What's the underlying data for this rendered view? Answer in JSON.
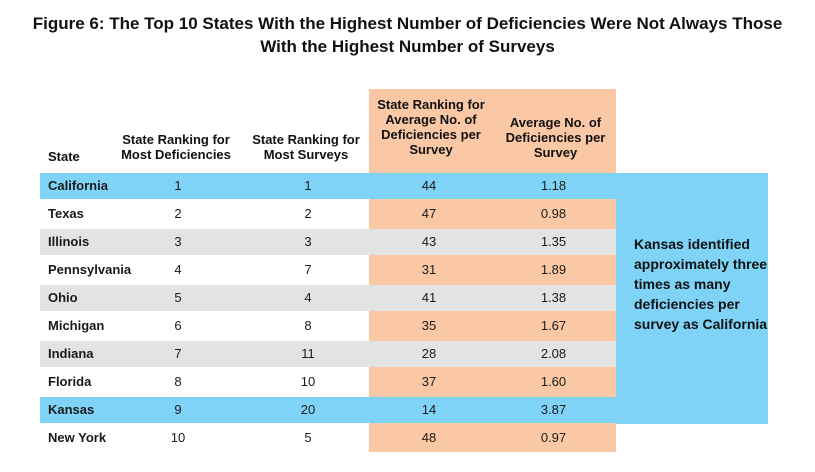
{
  "title_line1": "Figure 6: The Top 10 States With the Highest Number of Deficiencies Were Not Always Those",
  "title_line2": "With the Highest Number of Surveys",
  "headers": {
    "state": "State",
    "most_def_line1": "State Ranking for",
    "most_def_line2": "Most Deficiencies",
    "most_surv_line1": "State Ranking for",
    "most_surv_line2": "Most Surveys",
    "avg_rank_line1": "State Ranking for",
    "avg_rank_line2": "Average No. of",
    "avg_rank_line3": "Deficiencies per",
    "avg_rank_line4": "Survey",
    "avg_no_line1": "Average No. of",
    "avg_no_line2": "Deficiencies per",
    "avg_no_line3": "Survey"
  },
  "callout_text": "Kansas identified approximately three times as many deficiencies per survey as California",
  "colors": {
    "highlight_blue": "#7ed3f7",
    "stripe_gray": "#e3e3e3",
    "orange_column": "#fbc8a6"
  },
  "chart_data": {
    "type": "table",
    "columns": [
      "State",
      "State Ranking for Most Deficiencies",
      "State Ranking for Most Surveys",
      "State Ranking for Average No. of Deficiencies per Survey",
      "Average No. of Deficiencies per Survey"
    ],
    "rows": [
      {
        "state": "California",
        "most_def": "1",
        "most_surv": "1",
        "avg_rank": "44",
        "avg_no": "1.18",
        "highlight": "blue"
      },
      {
        "state": "Texas",
        "most_def": "2",
        "most_surv": "2",
        "avg_rank": "47",
        "avg_no": "0.98",
        "highlight": "none"
      },
      {
        "state": "Illinois",
        "most_def": "3",
        "most_surv": "3",
        "avg_rank": "43",
        "avg_no": "1.35",
        "highlight": "gray"
      },
      {
        "state": "Pennsylvania",
        "most_def": "4",
        "most_surv": "7",
        "avg_rank": "31",
        "avg_no": "1.89",
        "highlight": "none"
      },
      {
        "state": "Ohio",
        "most_def": "5",
        "most_surv": "4",
        "avg_rank": "41",
        "avg_no": "1.38",
        "highlight": "gray"
      },
      {
        "state": "Michigan",
        "most_def": "6",
        "most_surv": "8",
        "avg_rank": "35",
        "avg_no": "1.67",
        "highlight": "none"
      },
      {
        "state": "Indiana",
        "most_def": "7",
        "most_surv": "11",
        "avg_rank": "28",
        "avg_no": "2.08",
        "highlight": "gray"
      },
      {
        "state": "Florida",
        "most_def": "8",
        "most_surv": "10",
        "avg_rank": "37",
        "avg_no": "1.60",
        "highlight": "none"
      },
      {
        "state": "Kansas",
        "most_def": "9",
        "most_surv": "20",
        "avg_rank": "14",
        "avg_no": "3.87",
        "highlight": "blue"
      },
      {
        "state": "New York",
        "most_def": "10",
        "most_surv": "5",
        "avg_rank": "48",
        "avg_no": "0.97",
        "highlight": "none"
      }
    ]
  }
}
